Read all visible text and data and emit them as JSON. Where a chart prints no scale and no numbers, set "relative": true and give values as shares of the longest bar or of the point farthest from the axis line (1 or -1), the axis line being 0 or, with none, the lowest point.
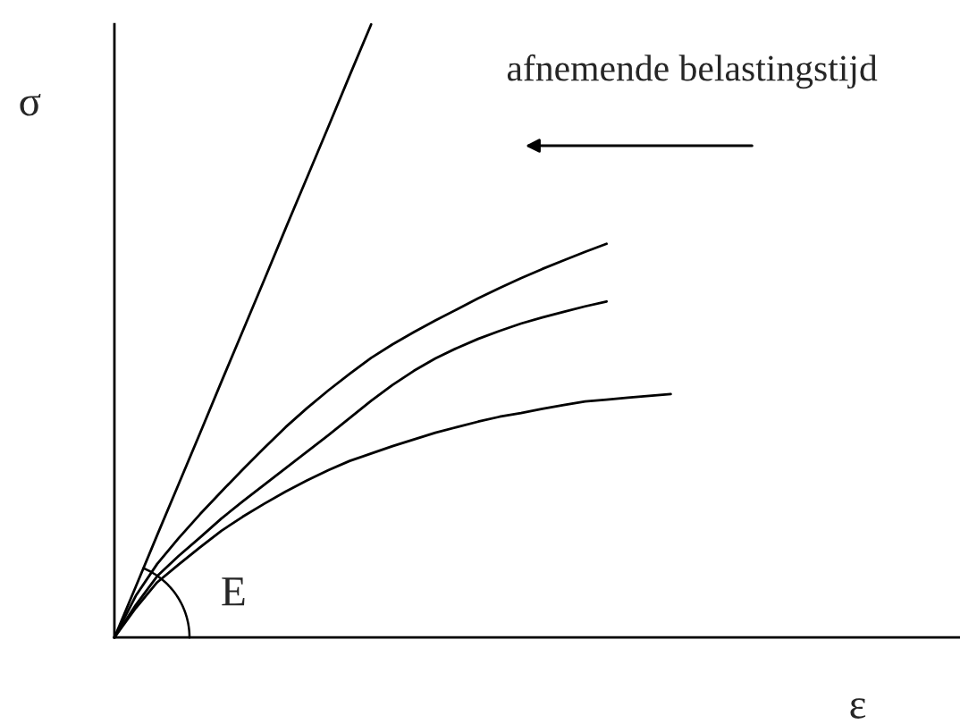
{
  "chart_data": {
    "type": "line",
    "xlabel": "ε",
    "ylabel": "σ",
    "relative": true,
    "line_style": "solid",
    "annotations": [
      "afnemende belastingstijd",
      "E"
    ],
    "categories": [
      null,
      null,
      null,
      null,
      null,
      null,
      null,
      null,
      null,
      null,
      null,
      null,
      null,
      null,
      null,
      null,
      null,
      null,
      null,
      null,
      null,
      null,
      null,
      null,
      null,
      null,
      null
    ],
    "series": [
      {
        "color": "#000000",
        "values": [
          0,
          0.083,
          0.167,
          0.25,
          0.333,
          0.417,
          0.5,
          0.583,
          0.667,
          0.75,
          0.833,
          0.917,
          1,
          null,
          null,
          null,
          null,
          null,
          null,
          null,
          null,
          null,
          null,
          null,
          null,
          null,
          null
        ]
      },
      {
        "color": "#000000",
        "values": [
          0,
          0.068,
          0.12,
          0.162,
          0.201,
          0.238,
          0.274,
          0.309,
          0.343,
          0.374,
          0.403,
          0.43,
          0.456,
          0.478,
          0.498,
          0.517,
          0.535,
          0.553,
          0.57,
          0.586,
          0.601,
          0.615,
          0.629,
          0.642,
          null,
          null,
          null
        ]
      },
      {
        "color": "#000000",
        "values": [
          0,
          0.053,
          0.1,
          0.133,
          0.163,
          0.194,
          0.222,
          0.249,
          0.276,
          0.303,
          0.33,
          0.358,
          0.386,
          0.412,
          0.435,
          0.455,
          0.472,
          0.487,
          0.5,
          0.512,
          0.522,
          0.531,
          0.54,
          0.548,
          null,
          null,
          null
        ]
      },
      {
        "color": "#000000",
        "values": [
          0,
          0.048,
          0.09,
          0.119,
          0.147,
          0.174,
          0.197,
          0.218,
          0.238,
          0.256,
          0.273,
          0.288,
          0.3,
          0.312,
          0.323,
          0.334,
          0.343,
          0.352,
          0.36,
          0.366,
          0.373,
          0.379,
          0.385,
          0.388,
          0.391,
          0.394,
          0.397
        ]
      }
    ]
  }
}
